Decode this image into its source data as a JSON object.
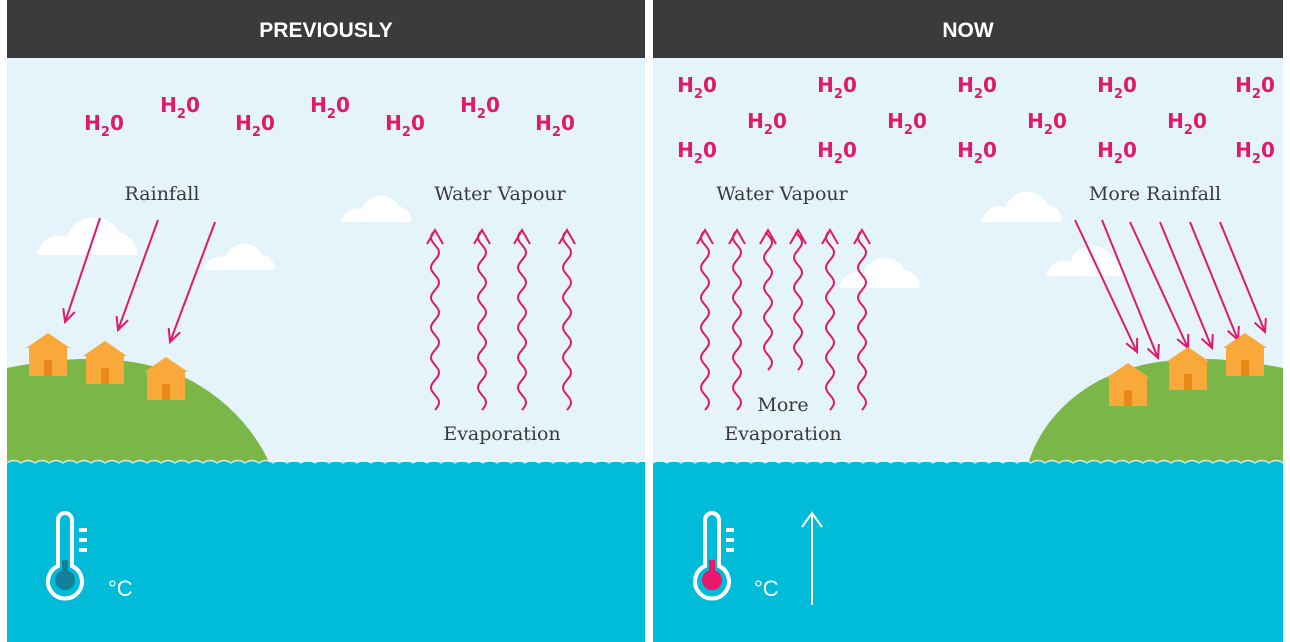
{
  "panels": [
    {
      "title": "PREVIOUSLY",
      "rainfall": "Rainfall",
      "vapour": "Water Vapour",
      "evaporation": [
        "Evaporation"
      ],
      "unit": "°C"
    },
    {
      "title": "NOW",
      "rainfall": "More Rainfall",
      "vapour": "Water Vapour",
      "evaporation": [
        "More",
        "Evaporation"
      ],
      "unit": "°C"
    }
  ],
  "molecule": {
    "element": "H",
    "subscript": "2",
    "suffix": "0"
  }
}
